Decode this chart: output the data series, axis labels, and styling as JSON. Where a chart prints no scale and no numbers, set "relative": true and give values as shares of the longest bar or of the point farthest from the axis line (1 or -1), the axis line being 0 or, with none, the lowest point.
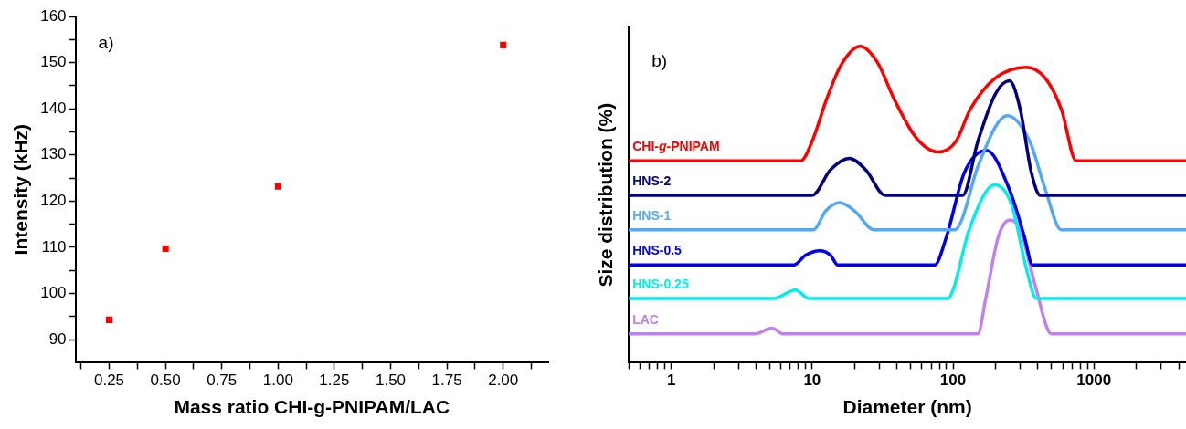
{
  "chart_data": [
    {
      "type": "scatter",
      "xlabel": "Mass ratio CHI-g-PNIPAM/LAC",
      "ylabel": "Intensity (kHz)",
      "annotations": [
        "a)"
      ],
      "marker": "square",
      "legend": false,
      "grid": false,
      "x": [
        0.25,
        0.5,
        1.0,
        2.0
      ],
      "series": [
        {
          "color": "#ff0000",
          "values": [
            94.3,
            109.7,
            123.2,
            153.8
          ]
        }
      ],
      "xlim": [
        0.1,
        2.2
      ],
      "xticks": [
        {
          "value": 0.125,
          "label": null
        },
        {
          "value": 0.25,
          "label": "0.25"
        },
        {
          "value": 0.375,
          "label": null
        },
        {
          "value": 0.5,
          "label": "0.50"
        },
        {
          "value": 0.625,
          "label": null
        },
        {
          "value": 0.75,
          "label": "0.75"
        },
        {
          "value": 0.875,
          "label": null
        },
        {
          "value": 1.0,
          "label": "1.00"
        },
        {
          "value": 1.125,
          "label": null
        },
        {
          "value": 1.25,
          "label": "1.25"
        },
        {
          "value": 1.375,
          "label": null
        },
        {
          "value": 1.5,
          "label": "1.50"
        },
        {
          "value": 1.625,
          "label": null
        },
        {
          "value": 1.75,
          "label": "1.75"
        },
        {
          "value": 1.875,
          "label": null
        },
        {
          "value": 2.0,
          "label": "2.00"
        },
        {
          "value": 2.125,
          "label": null
        }
      ],
      "ylim": [
        85,
        160
      ],
      "yticks": [
        90,
        {
          "value": 95,
          "label": null
        },
        100,
        {
          "value": 105,
          "label": null
        },
        110,
        {
          "value": 115,
          "label": null
        },
        120,
        {
          "value": 125,
          "label": null
        },
        130,
        {
          "value": 135,
          "label": null
        },
        140,
        {
          "value": 145,
          "label": null
        },
        150,
        {
          "value": 155,
          "label": null
        },
        160
      ]
    },
    {
      "type": "line",
      "xlabel": "Diameter (nm)",
      "ylabel": "Size distribution (%)",
      "annotations": [
        "b)"
      ],
      "relative": true,
      "log": "x",
      "tick_labels": "x",
      "legend": false,
      "grid": false,
      "marker": "none",
      "line_style": "solid",
      "xlim": [
        0.5,
        4500
      ],
      "xticks": [
        {
          "value": 0.5,
          "label": null
        },
        {
          "value": 0.6,
          "label": null
        },
        {
          "value": 0.7,
          "label": null
        },
        {
          "value": 0.8,
          "label": null
        },
        {
          "value": 0.9,
          "label": null
        },
        1,
        {
          "value": 2,
          "label": null
        },
        {
          "value": 3,
          "label": null
        },
        {
          "value": 4,
          "label": null
        },
        {
          "value": 5,
          "label": null
        },
        {
          "value": 6,
          "label": null
        },
        {
          "value": 7,
          "label": null
        },
        {
          "value": 8,
          "label": null
        },
        {
          "value": 9,
          "label": null
        },
        10,
        {
          "value": 20,
          "label": null
        },
        {
          "value": 30,
          "label": null
        },
        {
          "value": 40,
          "label": null
        },
        {
          "value": 50,
          "label": null
        },
        {
          "value": 60,
          "label": null
        },
        {
          "value": 70,
          "label": null
        },
        {
          "value": 80,
          "label": null
        },
        {
          "value": 90,
          "label": null
        },
        100,
        {
          "value": 200,
          "label": null
        },
        {
          "value": 300,
          "label": null
        },
        {
          "value": 400,
          "label": null
        },
        {
          "value": 500,
          "label": null
        },
        {
          "value": 600,
          "label": null
        },
        {
          "value": 700,
          "label": null
        },
        {
          "value": 800,
          "label": null
        },
        {
          "value": 900,
          "label": null
        },
        1000,
        {
          "value": 2000,
          "label": null
        },
        {
          "value": 3000,
          "label": null
        },
        {
          "value": 4000,
          "label": null
        }
      ],
      "series": [
        {
          "name": "CHI-g-PNIPAM",
          "color": "#ff0000",
          "x": [
            0.5,
            8.3,
            10,
            12.6,
            16,
            21.9,
            29,
            38.5,
            55,
            78.7,
            105,
            132,
            200,
            331,
            450,
            588,
            748,
            4500
          ],
          "values": [
            0.638,
            0.638,
            0.7,
            0.83,
            0.94,
            1.0,
            0.95,
            0.83,
            0.71,
            0.666,
            0.7,
            0.8,
            0.9,
            0.934,
            0.9,
            0.8,
            0.638,
            0.638
          ]
        },
        {
          "name": "HNS-2",
          "color": "#000080",
          "x": [
            0.5,
            10,
            13.5,
            18.4,
            24,
            33,
            117,
            150,
            200,
            252,
            300,
            360,
            417,
            4500
          ],
          "values": [
            0.529,
            0.529,
            0.61,
            0.646,
            0.61,
            0.529,
            0.529,
            0.7,
            0.85,
            0.891,
            0.8,
            0.6,
            0.529,
            0.529
          ]
        },
        {
          "name": "HNS-1",
          "color": "#55a8f5",
          "x": [
            0.5,
            10.2,
            12.5,
            15.7,
            20,
            27.5,
            103,
            115,
            150,
            243,
            350,
            450,
            585,
            4500
          ],
          "values": [
            0.42,
            0.42,
            0.48,
            0.506,
            0.48,
            0.42,
            0.42,
            0.45,
            0.62,
            0.781,
            0.7,
            0.55,
            0.42,
            0.42
          ]
        },
        {
          "name": "HNS-0.5",
          "color": "#0000ee",
          "x": [
            0.5,
            7.4,
            9,
            11.3,
            13.5,
            15.2,
            74,
            90,
            120,
            173,
            250,
            320,
            367,
            4500
          ],
          "values": [
            0.309,
            0.309,
            0.34,
            0.354,
            0.34,
            0.309,
            0.309,
            0.4,
            0.6,
            0.671,
            0.55,
            0.4,
            0.309,
            0.309
          ]
        },
        {
          "name": "HNS-0.25",
          "color": "#00eeee",
          "x": [
            0.5,
            5.35,
            7.6,
            9.5,
            92,
            100,
            130,
            198,
            260,
            330,
            390,
            4500
          ],
          "values": [
            0.203,
            0.203,
            0.23,
            0.203,
            0.203,
            0.23,
            0.42,
            0.562,
            0.5,
            0.3,
            0.203,
            0.203
          ]
        },
        {
          "name": "LAC",
          "color": "#c080f0",
          "x": [
            0.5,
            3.9,
            5.2,
            6.2,
            150,
            170,
            210,
            254,
            300,
            380,
            500,
            4500
          ],
          "values": [
            0.091,
            0.091,
            0.109,
            0.091,
            0.091,
            0.2,
            0.4,
            0.451,
            0.42,
            0.25,
            0.091,
            0.091
          ]
        }
      ]
    }
  ]
}
